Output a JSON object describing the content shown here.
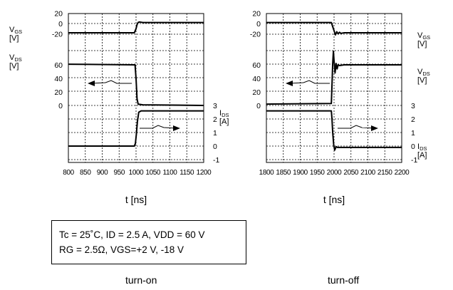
{
  "chart_data": [
    {
      "name": "turn-on",
      "type": "line",
      "xlabel": "t [ns]",
      "xlim": [
        800,
        1200
      ],
      "x_ticks": [
        "800",
        "850",
        "900",
        "950",
        "1000",
        "1050",
        "1100",
        "1150",
        "1200"
      ],
      "vgs_ticks": [
        "20",
        "0",
        "-20"
      ],
      "vds_ticks": [
        "60",
        "40",
        "20",
        "0"
      ],
      "ids_ticks": [
        "3",
        "2",
        "1",
        "0",
        "-1"
      ],
      "labels": {
        "vgs": {
          "main": "V",
          "sub": "GS",
          "unit": "[V]"
        },
        "vds": {
          "main": "V",
          "sub": "DS",
          "unit": "[V]"
        },
        "ids": {
          "main": "I",
          "sub": "DS",
          "unit": "[A]"
        }
      },
      "series": [
        {
          "name": "VGS",
          "unit": "V",
          "x": [
            800,
            995,
            1000,
            1003,
            1006,
            1010,
            1020,
            1060,
            1200
          ],
          "y": [
            -18,
            -18,
            -10,
            -2,
            2,
            3,
            2,
            2,
            2
          ]
        },
        {
          "name": "VDS",
          "unit": "V",
          "x": [
            800,
            997,
            1000,
            1003,
            1006,
            1020,
            1200
          ],
          "y": [
            61,
            60,
            40,
            10,
            2,
            1,
            0
          ]
        },
        {
          "name": "IDS",
          "unit": "A",
          "x": [
            800,
            995,
            998,
            1001,
            1004,
            1008,
            1015,
            1200
          ],
          "y": [
            0,
            0,
            0.2,
            0.9,
            1.8,
            2.5,
            2.6,
            2.6
          ]
        }
      ]
    },
    {
      "name": "turn-off",
      "type": "line",
      "xlabel": "t [ns]",
      "xlim": [
        1800,
        2200
      ],
      "x_ticks": [
        "1800",
        "1850",
        "1900",
        "1950",
        "2000",
        "2050",
        "2100",
        "2150",
        "2200"
      ],
      "vgs_ticks": [
        "20",
        "0",
        "-20"
      ],
      "vds_ticks": [
        "60",
        "40",
        "20",
        "0"
      ],
      "ids_ticks": [
        "3",
        "2",
        "1",
        "0",
        "-1"
      ],
      "labels": {
        "vgs": {
          "main": "V",
          "sub": "GS",
          "unit": "[V]"
        },
        "vds": {
          "main": "V",
          "sub": "DS",
          "unit": "[V]"
        },
        "ids": {
          "main": "I",
          "sub": "DS",
          "unit": "[A]"
        }
      },
      "series": [
        {
          "name": "VGS",
          "unit": "V",
          "x": [
            1800,
            1992,
            1996,
            2000,
            2004,
            2008,
            2012,
            2016,
            2020,
            2030,
            2200
          ],
          "y": [
            2,
            2,
            -6,
            -14,
            -22,
            -16,
            -20,
            -17,
            -19,
            -18,
            -18
          ]
        },
        {
          "name": "VDS",
          "unit": "V",
          "x": [
            1800,
            1992,
            1994,
            1996,
            1998,
            2000,
            2003,
            2006,
            2009,
            2012,
            2016,
            2030,
            2200
          ],
          "y": [
            2,
            3,
            30,
            62,
            80,
            66,
            48,
            62,
            54,
            60,
            59,
            60,
            60
          ]
        },
        {
          "name": "IDS",
          "unit": "A",
          "x": [
            1800,
            1992,
            1994,
            1996,
            1999,
            2002,
            2006,
            2010,
            2200
          ],
          "y": [
            2.6,
            2.6,
            2.0,
            1.0,
            0.1,
            -0.3,
            -0.05,
            -0.1,
            -0.1
          ]
        }
      ]
    }
  ],
  "conditions": {
    "line1": "Tc = 25˚C, ID = 2.5 A, VDD = 60 V",
    "line2": "RG = 2.5Ω, VGS=+2 V, -18 V"
  },
  "captions": {
    "left": "turn-on",
    "right": "turn-off"
  }
}
